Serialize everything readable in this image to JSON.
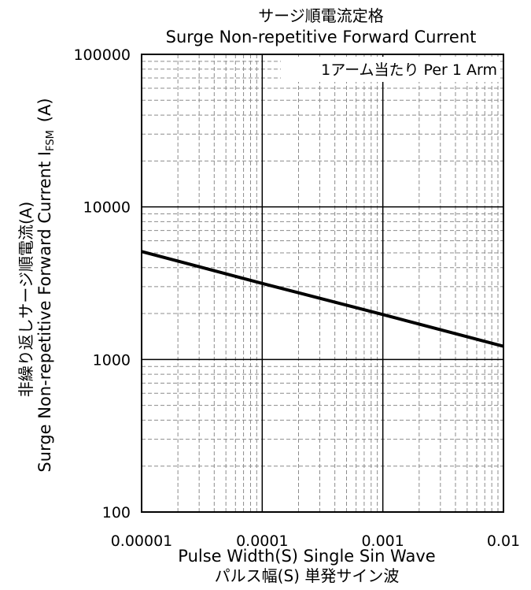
{
  "chart_data": {
    "type": "line",
    "title": "サージ順電流定格",
    "subtitle": "Surge Non-repetitive Forward Current",
    "annotation": "1アーム当たり Per 1 Arm",
    "xlabel": "Pulse Width(S)   Single Sin Wave",
    "xlabel2": "パルス幅(S) 単発サイン波",
    "ylabel": "Surge  Non-repetitive Forward Current I",
    "ylabel_sub": "FSM",
    "ylabel_unit": "(A)",
    "ylabel2": "非繰り返しサージ順電流(A)",
    "xscale": "log",
    "yscale": "log",
    "xlim": [
      1e-05,
      0.01
    ],
    "ylim": [
      100,
      100000
    ],
    "x_ticks": [
      "0.00001",
      "0.0001",
      "0.001",
      "0.01"
    ],
    "y_ticks": [
      "100",
      "1000",
      "10000",
      "100000"
    ],
    "grid": true,
    "series": [
      {
        "x": [
          1e-05,
          0.0001,
          0.001,
          0.01
        ],
        "y": [
          5100,
          3150,
          1970,
          1220
        ]
      }
    ]
  }
}
